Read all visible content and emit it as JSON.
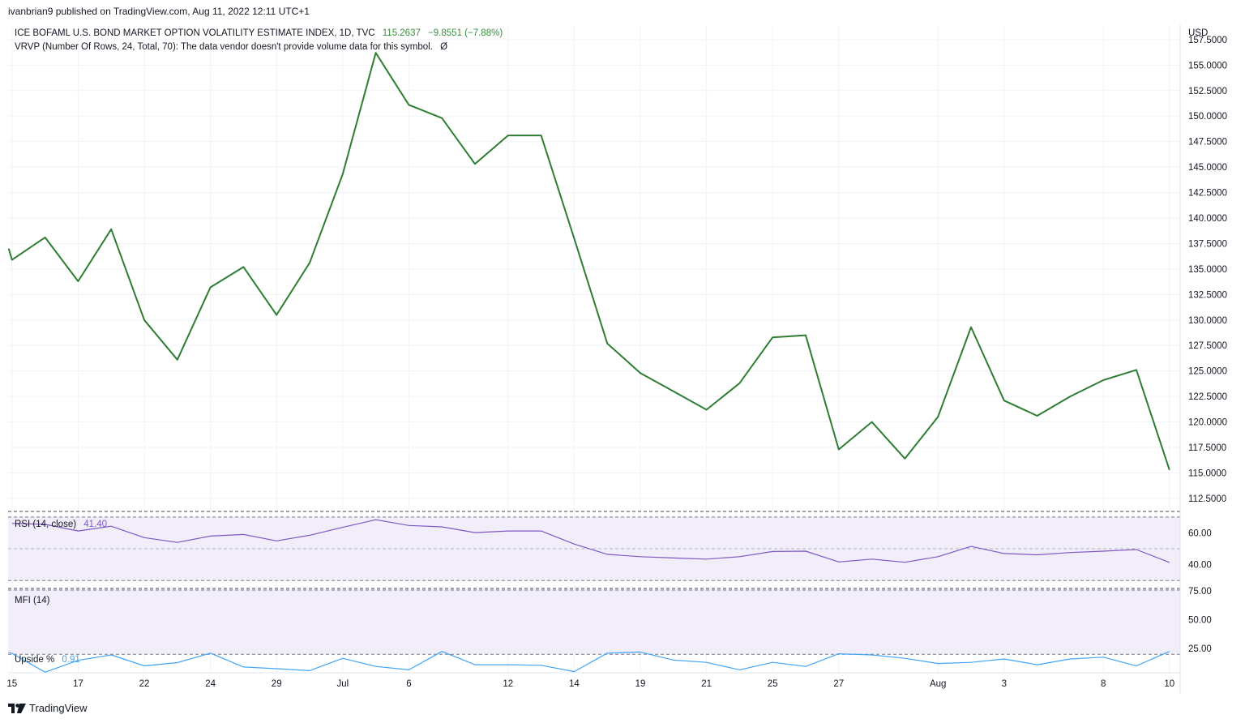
{
  "header": {
    "published": "ivanbrian9 published on TradingView.com, Aug 11, 2022 12:11 UTC+1"
  },
  "legend": {
    "symbol": "ICE BOFAML U.S. BOND MARKET OPTION VOLATILITY ESTIMATE INDEX, 1D, TVC",
    "last": "115.2637",
    "change": "−9.8551 (−7.88%)",
    "vrvp": "VRVP (Number Of Rows, 24, Total, 70): The data vendor doesn't provide volume data for this symbol.",
    "vrvp_icon": "Ø",
    "rsi_label": "RSI (14, close)",
    "rsi_value": "41.40",
    "mfi_label": "MFI (14)",
    "upside_label": "Upside %",
    "upside_value": "0.91"
  },
  "footer": {
    "brand": "TradingView",
    "logo_icon": "tradingview-logo-icon"
  },
  "colors": {
    "price_line": "#2e7d32",
    "rsi_line": "#7e57c2",
    "upside_line": "#42a5f5",
    "band_fill": "#f1eefa",
    "grid": "#f0f3fa"
  },
  "chart_data": [
    {
      "type": "line",
      "name": "price",
      "y_axis_unit": "USD",
      "ylim": [
        111.3,
        159.0
      ],
      "yticks": [
        "157.5000",
        "155.0000",
        "152.5000",
        "150.0000",
        "147.5000",
        "145.0000",
        "142.5000",
        "140.0000",
        "137.5000",
        "135.0000",
        "132.5000",
        "130.0000",
        "127.5000",
        "125.0000",
        "122.5000",
        "120.0000",
        "117.5000",
        "115.0000",
        "112.5000"
      ],
      "ytick_values": [
        157.5,
        155.0,
        152.5,
        150.0,
        147.5,
        145.0,
        142.5,
        140.0,
        137.5,
        135.0,
        132.5,
        130.0,
        127.5,
        125.0,
        122.5,
        120.0,
        117.5,
        115.0,
        112.5
      ],
      "x_tick_labels": [
        "15",
        "17",
        "22",
        "24",
        "29",
        "Jul",
        "6",
        "12",
        "14",
        "19",
        "21",
        "25",
        "27",
        "Aug",
        "3",
        "8",
        "10"
      ],
      "x_tick_index": [
        0,
        2,
        4,
        6,
        8,
        10,
        12,
        15,
        17,
        19,
        21,
        23,
        25,
        28,
        30,
        33,
        35
      ],
      "x_index": [
        -0.1,
        0,
        1,
        2,
        3,
        4,
        5,
        6,
        7,
        8,
        9,
        10,
        11,
        12,
        13,
        14,
        15,
        16,
        17,
        18,
        19,
        20,
        21,
        22,
        23,
        24,
        25,
        26,
        27,
        28,
        29,
        30,
        31,
        32,
        33,
        34,
        35
      ],
      "values": [
        137.0,
        135.9,
        138.1,
        133.8,
        138.9,
        130.0,
        126.1,
        133.2,
        135.2,
        130.5,
        135.6,
        144.3,
        156.2,
        151.1,
        149.8,
        145.3,
        148.1,
        148.1,
        138.0,
        127.7,
        124.8,
        123.0,
        121.2,
        123.8,
        128.3,
        128.5,
        117.3,
        120.0,
        116.4,
        120.5,
        129.3,
        122.1,
        120.6,
        122.5,
        124.1,
        125.1,
        115.3
      ]
    },
    {
      "type": "line",
      "name": "RSI",
      "ylim": [
        25.0,
        73.0
      ],
      "yticks": [
        "60.00",
        "40.00"
      ],
      "ytick_values": [
        60,
        40
      ],
      "band": [
        30,
        70
      ],
      "middle": 50,
      "x_index": [
        0,
        1,
        2,
        3,
        4,
        5,
        6,
        7,
        8,
        9,
        10,
        11,
        12,
        13,
        14,
        15,
        16,
        17,
        18,
        19,
        20,
        21,
        22,
        23,
        24,
        25,
        26,
        27,
        28,
        29,
        30,
        31,
        32,
        33,
        34,
        35
      ],
      "values": [
        66.0,
        65.4,
        61.2,
        64.2,
        57.0,
        54.0,
        58.0,
        59.0,
        55.0,
        58.5,
        63.5,
        68.3,
        64.7,
        63.8,
        60.2,
        61.2,
        61.2,
        53.0,
        46.5,
        45.0,
        44.2,
        43.5,
        45.0,
        48.3,
        48.5,
        41.7,
        43.5,
        41.5,
        45.0,
        51.5,
        47.0,
        46.2,
        47.6,
        48.5,
        49.5,
        41.4
      ]
    },
    {
      "type": "line",
      "name": "MFI",
      "ylim": [
        4.0,
        76.5
      ],
      "yticks": [
        "75.00",
        "50.00",
        "25.00"
      ],
      "ytick_values": [
        75,
        50,
        25
      ],
      "band": [
        20,
        80
      ],
      "upside_threshold": 20,
      "x_index": [
        -0.1,
        0,
        1,
        2,
        3,
        4,
        5,
        6,
        7,
        8,
        9,
        10,
        11,
        12,
        13,
        14,
        15,
        16,
        17,
        18,
        19,
        20,
        21,
        22,
        23,
        24,
        25,
        26,
        27,
        28,
        29,
        30,
        31,
        32,
        33,
        34,
        35
      ],
      "values": [
        21.5,
        20.8,
        4.5,
        14.8,
        19.5,
        10.0,
        12.8,
        21.0,
        9.0,
        7.5,
        5.8,
        16.5,
        9.5,
        6.5,
        22.5,
        11.0,
        11.0,
        10.5,
        5.0,
        21.0,
        22.0,
        15.0,
        13.0,
        6.5,
        13.0,
        9.5,
        20.5,
        19.5,
        16.5,
        12.0,
        13.0,
        16.0,
        11.0,
        16.0,
        17.5,
        10.0,
        22.5
      ]
    }
  ]
}
